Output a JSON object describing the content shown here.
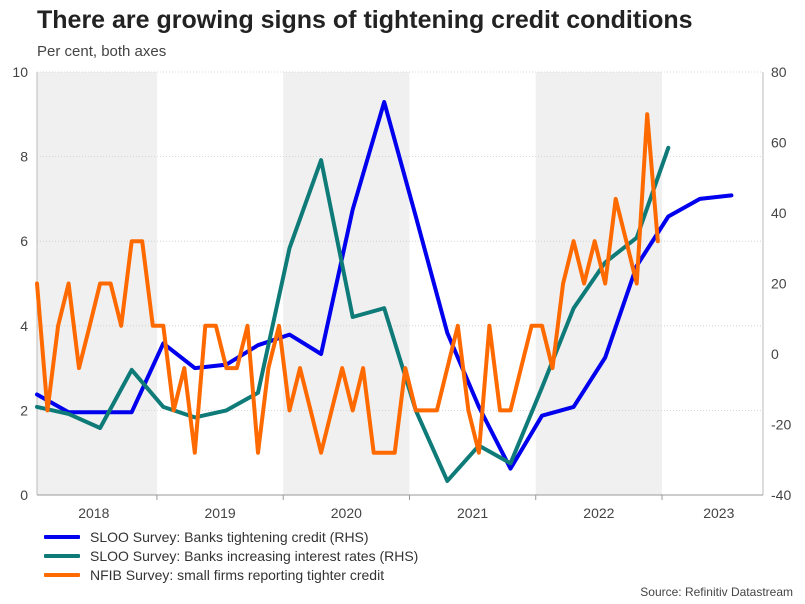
{
  "title": "There are growing signs of tightening credit conditions",
  "subtitle": "Per cent, both axes",
  "source": "Source: Refinitiv Datastream",
  "chart_data": {
    "type": "line",
    "x_start": 2017.55,
    "x_end": 2023.3,
    "left_axis": {
      "min": 0,
      "max": 10,
      "ticks": [
        0,
        2,
        4,
        6,
        8,
        10
      ]
    },
    "right_axis": {
      "min": -40,
      "max": 80,
      "ticks": [
        -40,
        -20,
        0,
        20,
        40,
        60,
        80
      ]
    },
    "x_ticks": [
      {
        "label": "2018",
        "x": 2018.0
      },
      {
        "label": "2019",
        "x": 2019.0
      },
      {
        "label": "2020",
        "x": 2020.0
      },
      {
        "label": "2021",
        "x": 2021.0
      },
      {
        "label": "2022",
        "x": 2022.0
      },
      {
        "label": "2023",
        "x": 2022.95
      }
    ],
    "shaded_bands": [
      [
        2017.55,
        2018.5
      ],
      [
        2019.5,
        2020.5
      ],
      [
        2021.5,
        2022.5
      ]
    ],
    "grid": true,
    "legend_position": "bottom-left",
    "series": [
      {
        "name": "SLOO Survey: Banks tightening credit (RHS)",
        "axis": "right",
        "color": "#0000ee",
        "points": [
          [
            2017.55,
            -11.5
          ],
          [
            2017.8,
            -16.5
          ],
          [
            2018.05,
            -16.5
          ],
          [
            2018.3,
            -16.5
          ],
          [
            2018.55,
            3
          ],
          [
            2018.8,
            -4
          ],
          [
            2019.05,
            -3
          ],
          [
            2019.3,
            2.5
          ],
          [
            2019.55,
            5.5
          ],
          [
            2019.8,
            0
          ],
          [
            2020.05,
            41
          ],
          [
            2020.3,
            71.5
          ],
          [
            2020.55,
            39
          ],
          [
            2020.8,
            6
          ],
          [
            2021.05,
            -15
          ],
          [
            2021.3,
            -32.5
          ],
          [
            2021.55,
            -17.5
          ],
          [
            2021.8,
            -15
          ],
          [
            2022.05,
            -1
          ],
          [
            2022.3,
            25
          ],
          [
            2022.55,
            39
          ],
          [
            2022.8,
            44
          ],
          [
            2023.05,
            45
          ]
        ]
      },
      {
        "name": "SLOO Survey: Banks increasing interest rates (RHS)",
        "axis": "right",
        "color": "#0f7b78",
        "points": [
          [
            2017.55,
            -15
          ],
          [
            2017.8,
            -17
          ],
          [
            2018.05,
            -21
          ],
          [
            2018.3,
            -4.5
          ],
          [
            2018.55,
            -15
          ],
          [
            2018.8,
            -18
          ],
          [
            2019.05,
            -16
          ],
          [
            2019.3,
            -11
          ],
          [
            2019.55,
            30
          ],
          [
            2019.8,
            55
          ],
          [
            2020.05,
            10.5
          ],
          [
            2020.3,
            13
          ],
          [
            2020.55,
            -16
          ],
          [
            2020.8,
            -36
          ],
          [
            2021.05,
            -26
          ],
          [
            2021.3,
            -31
          ],
          [
            2021.55,
            -9.5
          ],
          [
            2021.8,
            13
          ],
          [
            2022.05,
            26
          ],
          [
            2022.3,
            33
          ],
          [
            2022.55,
            58.5
          ]
        ]
      },
      {
        "name": "NFIB Survey: small firms reporting tighter credit",
        "axis": "left",
        "color": "#ff6a00",
        "points": [
          [
            2017.55,
            5
          ],
          [
            2017.633,
            2
          ],
          [
            2017.717,
            4
          ],
          [
            2017.8,
            5
          ],
          [
            2017.883,
            3
          ],
          [
            2017.967,
            4
          ],
          [
            2018.05,
            5
          ],
          [
            2018.133,
            5
          ],
          [
            2018.217,
            4
          ],
          [
            2018.3,
            6
          ],
          [
            2018.383,
            6
          ],
          [
            2018.467,
            4
          ],
          [
            2018.55,
            4
          ],
          [
            2018.633,
            2
          ],
          [
            2018.717,
            3
          ],
          [
            2018.8,
            1
          ],
          [
            2018.883,
            4
          ],
          [
            2018.967,
            4
          ],
          [
            2019.05,
            3
          ],
          [
            2019.133,
            3
          ],
          [
            2019.217,
            4
          ],
          [
            2019.3,
            1
          ],
          [
            2019.383,
            3
          ],
          [
            2019.467,
            4
          ],
          [
            2019.55,
            2
          ],
          [
            2019.633,
            3
          ],
          [
            2019.717,
            2
          ],
          [
            2019.8,
            1
          ],
          [
            2019.883,
            2
          ],
          [
            2019.967,
            3
          ],
          [
            2020.05,
            2
          ],
          [
            2020.133,
            3
          ],
          [
            2020.217,
            1
          ],
          [
            2020.3,
            1
          ],
          [
            2020.383,
            1
          ],
          [
            2020.467,
            3
          ],
          [
            2020.55,
            2
          ],
          [
            2020.633,
            2
          ],
          [
            2020.717,
            2
          ],
          [
            2020.8,
            3
          ],
          [
            2020.883,
            4
          ],
          [
            2020.967,
            2
          ],
          [
            2021.05,
            1
          ],
          [
            2021.133,
            4
          ],
          [
            2021.217,
            2
          ],
          [
            2021.3,
            2
          ],
          [
            2021.383,
            3
          ],
          [
            2021.467,
            4
          ],
          [
            2021.55,
            4
          ],
          [
            2021.633,
            3
          ],
          [
            2021.717,
            5
          ],
          [
            2021.8,
            6
          ],
          [
            2021.883,
            5
          ],
          [
            2021.967,
            6
          ],
          [
            2022.05,
            5
          ],
          [
            2022.133,
            7
          ],
          [
            2022.217,
            6
          ],
          [
            2022.3,
            5
          ],
          [
            2022.383,
            9
          ],
          [
            2022.467,
            6
          ]
        ]
      }
    ]
  }
}
